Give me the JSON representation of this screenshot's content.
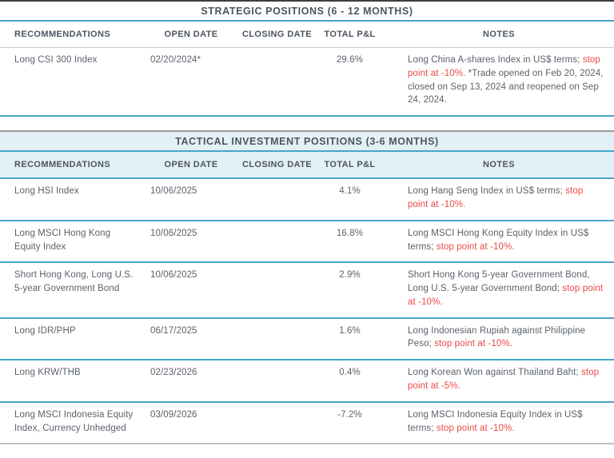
{
  "colors": {
    "accent_cyan": "#45a6c8",
    "tinted_background": "#e4f0f8",
    "stop_point_red": "#e94a45",
    "text": "#5a626b"
  },
  "sections": [
    {
      "id": "strategic",
      "title": "STRATEGIC POSITIONS (6 - 12 MONTHS)",
      "columns": [
        "RECOMMENDATIONS",
        "OPEN DATE",
        "CLOSING DATE",
        "TOTAL P&L",
        "NOTES"
      ],
      "rows": [
        {
          "recommendation": "Long CSI 300 Index",
          "open_date": "02/20/2024*",
          "closing_date": "",
          "total_pl": "29.6%",
          "notes": [
            {
              "text": "Long China A-shares Index in US$ terms; ",
              "highlight": false
            },
            {
              "text": "stop point at -10%.",
              "highlight": true
            },
            {
              "text": " *Trade opened on Feb 20, 2024, closed on Sep 13, 2024 and reopened on Sep 24, 2024.",
              "highlight": false
            }
          ]
        }
      ]
    },
    {
      "id": "tactical",
      "title": "TACTICAL INVESTMENT POSITIONS (3-6 MONTHS)",
      "columns": [
        "RECOMMENDATIONS",
        "OPEN DATE",
        "CLOSING DATE",
        "TOTAL P&L",
        "NOTES"
      ],
      "rows": [
        {
          "recommendation": "Long HSI Index",
          "open_date": "10/06/2025",
          "closing_date": "",
          "total_pl": "4.1%",
          "notes": [
            {
              "text": "Long Hang Seng Index in US$ terms; ",
              "highlight": false
            },
            {
              "text": "stop point at -10%.",
              "highlight": true
            }
          ]
        },
        {
          "recommendation": "Long MSCI Hong Kong Equity Index",
          "open_date": "10/06/2025",
          "closing_date": "",
          "total_pl": "16.8%",
          "notes": [
            {
              "text": "Long MSCI Hong Kong Equity Index in US$ terms; ",
              "highlight": false
            },
            {
              "text": "stop point at -10%.",
              "highlight": true
            }
          ]
        },
        {
          "recommendation": "Short Hong Kong, Long U.S. 5-year Government Bond",
          "open_date": "10/06/2025",
          "closing_date": "",
          "total_pl": "2.9%",
          "notes": [
            {
              "text": "Short Hong Kong 5-year Government Bond, Long U.S. 5-year Government Bond; ",
              "highlight": false
            },
            {
              "text": "stop point at -10%.",
              "highlight": true
            }
          ]
        },
        {
          "recommendation": "Long IDR/PHP",
          "open_date": "06/17/2025",
          "closing_date": "",
          "total_pl": "1.6%",
          "notes": [
            {
              "text": "Long Indonesian Rupiah against Philippine Peso; ",
              "highlight": false
            },
            {
              "text": "stop point at -10%.",
              "highlight": true
            }
          ]
        },
        {
          "recommendation": "Long KRW/THB",
          "open_date": "02/23/2026",
          "closing_date": "",
          "total_pl": "0.4%",
          "notes": [
            {
              "text": "Long Korean Won against Thailand Baht; ",
              "highlight": false
            },
            {
              "text": "stop point at -5%.",
              "highlight": true
            }
          ]
        },
        {
          "recommendation": "Long MSCI Indonesia Equity Index, Currency Unhedged",
          "open_date": "03/09/2026",
          "closing_date": "",
          "total_pl": "-7.2%",
          "notes": [
            {
              "text": "Long MSCI Indonesia Equity Index in US$ terms; ",
              "highlight": false
            },
            {
              "text": "stop point at -10%.",
              "highlight": true
            }
          ]
        }
      ]
    }
  ]
}
